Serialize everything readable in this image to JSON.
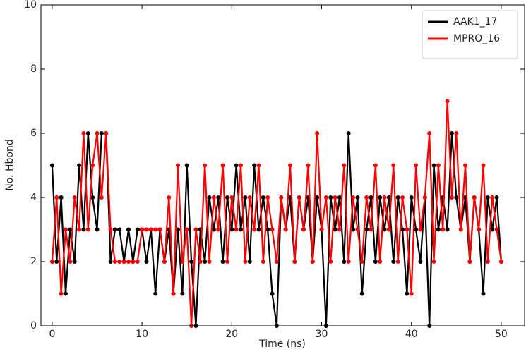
{
  "chart_data": {
    "type": "line",
    "xlabel": "Time (ns)",
    "ylabel": "No. Hbond",
    "x": [
      0,
      0.5,
      1,
      1.5,
      2,
      2.5,
      3,
      3.5,
      4,
      4.5,
      5,
      5.5,
      6,
      6.5,
      7,
      7.5,
      8,
      8.5,
      9,
      9.5,
      10,
      10.5,
      11,
      11.5,
      12,
      12.5,
      13,
      13.5,
      14,
      14.5,
      15,
      15.5,
      16,
      16.5,
      17,
      17.5,
      18,
      18.5,
      19,
      19.5,
      20,
      20.5,
      21,
      21.5,
      22,
      22.5,
      23,
      23.5,
      24,
      24.5,
      25,
      25.5,
      26,
      26.5,
      27,
      27.5,
      28,
      28.5,
      29,
      29.5,
      30,
      30.5,
      31,
      31.5,
      32,
      32.5,
      33,
      33.5,
      34,
      34.5,
      35,
      35.5,
      36,
      36.5,
      37,
      37.5,
      38,
      38.5,
      39,
      39.5,
      40,
      40.5,
      41,
      41.5,
      42,
      42.5,
      43,
      43.5,
      44,
      44.5,
      45,
      45.5,
      46,
      46.5,
      47,
      47.5,
      48,
      48.5,
      49,
      49.5,
      50
    ],
    "series": [
      {
        "name": "AAK1_17",
        "color": "#000000",
        "values": [
          5,
          2,
          4,
          1,
          3,
          2,
          5,
          3,
          6,
          4,
          3,
          6,
          6,
          2,
          3,
          3,
          2,
          3,
          2,
          3,
          3,
          2,
          3,
          1,
          3,
          2,
          3,
          1,
          3,
          1,
          5,
          2,
          0,
          3,
          2,
          4,
          3,
          4,
          2,
          4,
          3,
          5,
          3,
          4,
          2,
          5,
          3,
          4,
          3,
          1,
          0,
          4,
          3,
          4,
          2,
          4,
          3,
          4,
          2,
          4,
          3,
          0,
          4,
          3,
          4,
          2,
          6,
          3,
          4,
          1,
          3,
          4,
          2,
          4,
          3,
          4,
          2,
          4,
          3,
          1,
          4,
          3,
          2,
          4,
          0,
          5,
          3,
          4,
          3,
          6,
          4,
          3,
          4,
          2,
          4,
          3,
          1,
          4,
          3,
          4,
          2
        ]
      },
      {
        "name": "MPRO_16",
        "color": "#ff0000",
        "values": [
          2,
          4,
          1,
          3,
          2,
          4,
          3,
          6,
          3,
          5,
          6,
          4,
          6,
          3,
          2,
          2,
          2,
          2,
          2,
          2,
          3,
          3,
          3,
          3,
          3,
          2,
          4,
          1,
          5,
          2,
          3,
          0,
          3,
          2,
          5,
          2,
          4,
          3,
          5,
          2,
          4,
          3,
          5,
          2,
          4,
          3,
          5,
          2,
          4,
          3,
          2,
          4,
          3,
          5,
          2,
          4,
          3,
          5,
          2,
          6,
          3,
          4,
          2,
          4,
          3,
          5,
          2,
          4,
          3,
          2,
          4,
          3,
          5,
          2,
          4,
          3,
          5,
          2,
          4,
          3,
          1,
          5,
          3,
          4,
          6,
          2,
          5,
          3,
          7,
          4,
          6,
          3,
          5,
          2,
          4,
          3,
          5,
          2,
          4,
          3,
          2
        ]
      }
    ],
    "xlim": [
      -1.25,
      52.6
    ],
    "ylim": [
      0,
      10
    ],
    "xticks": [
      0,
      10,
      20,
      30,
      40,
      50
    ],
    "yticks": [
      0,
      2,
      4,
      6,
      8,
      10
    ],
    "legend": "upper right"
  }
}
